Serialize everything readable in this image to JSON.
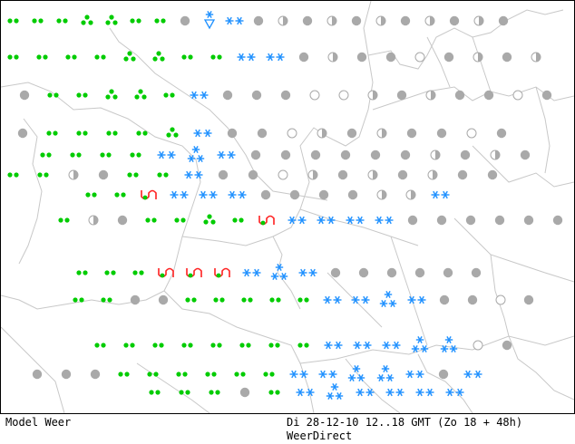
{
  "footer": {
    "left": "Model Weer",
    "right": "Di 28-12-10 12..18 GMT (Zo 18 + 48h)",
    "brand": "WeerDirect"
  },
  "colors": {
    "rain": "#00cc00",
    "snow": "#1e90ff",
    "freezing": "#ff2020",
    "overcast": "#a9a9a9",
    "coast": "#c8c8c8"
  },
  "legend_symbols": {
    "d": "drizzle",
    "t": "rain-showers",
    "s": "snow",
    "S": "snow-showers",
    "v": "snow-shower-cone",
    "f": "freezing-rain",
    "O": "overcast",
    "h": "partly-cloudy",
    "c": "clear"
  },
  "grid": {
    "rows": [
      "ddddttdd",
      "ddddttdd",
      "dddttd",
      "dddd",
      "dddd",
      "dddd",
      "dddd",
      "dddd",
      "dddd",
      "dddd",
      "dddd"
    ]
  }
}
